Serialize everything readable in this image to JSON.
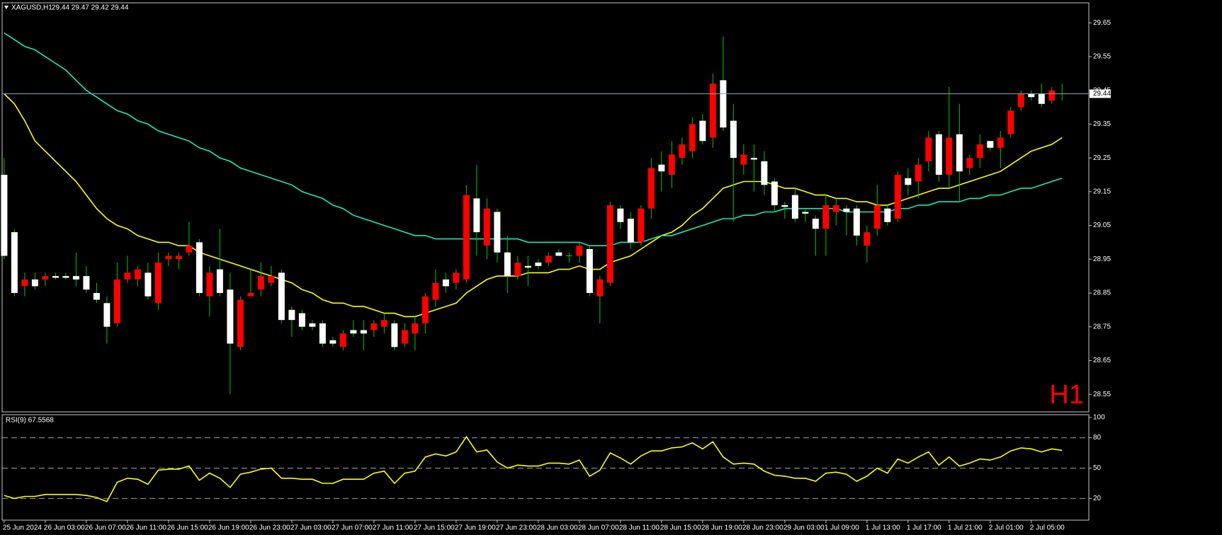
{
  "chart_data": [
    {
      "type": "candlestick",
      "title": "XAGUSD,H1",
      "subtitle": "29.44 29.47 29.42 29.44",
      "watermark": "H1",
      "categories": [
        "25 Jun 2024",
        null,
        null,
        null,
        "26 Jun 03:00",
        null,
        null,
        null,
        "26 Jun 07:00",
        null,
        null,
        null,
        "26 Jun 11:00",
        null,
        null,
        null,
        "26 Jun 15:00",
        null,
        null,
        null,
        "26 Jun 19:00",
        null,
        null,
        null,
        "26 Jun 23:00",
        null,
        null,
        null,
        "27 Jun 03:00",
        null,
        null,
        null,
        "27 Jun 07:00",
        null,
        null,
        null,
        "27 Jun 11:00",
        null,
        null,
        null,
        "27 Jun 15:00",
        null,
        null,
        null,
        "27 Jun 19:00",
        null,
        null,
        null,
        "27 Jun 23:00",
        null,
        null,
        null,
        "28 Jun 03:00",
        null,
        null,
        null,
        "28 Jun 07:00",
        null,
        null,
        null,
        "28 Jun 11:00",
        null,
        null,
        null,
        "28 Jun 15:00",
        null,
        null,
        null,
        "28 Jun 19:00",
        null,
        null,
        null,
        "28 Jun 23:00",
        null,
        null,
        null,
        "29 Jun 03:00",
        null,
        null,
        null,
        "1 Jul 09:00",
        null,
        null,
        null,
        "1 Jul 13:00",
        null,
        null,
        null,
        "1 Jul 17:00",
        null,
        null,
        null,
        "1 Jul 21:00",
        null,
        null,
        null,
        "2 Jul 01:00",
        null,
        null,
        null,
        "2 Jul 05:00",
        null,
        null,
        null
      ],
      "open": [
        29.2,
        29.03,
        28.87,
        28.89,
        28.89,
        28.9,
        28.9,
        28.9,
        28.9,
        28.85,
        28.82,
        28.76,
        28.89,
        28.89,
        28.91,
        28.82,
        28.95,
        28.95,
        28.97,
        29.0,
        28.84,
        28.92,
        28.86,
        28.69,
        28.84,
        28.86,
        28.88,
        28.91,
        28.8,
        28.79,
        28.76,
        28.76,
        28.71,
        28.69,
        28.74,
        28.74,
        28.74,
        28.75,
        28.76,
        28.7,
        28.73,
        28.76,
        28.83,
        28.89,
        28.88,
        28.89,
        29.13,
        28.99,
        29.09,
        28.97,
        28.9,
        28.93,
        28.94,
        28.94,
        28.97,
        28.96,
        28.96,
        28.98,
        28.84,
        28.88,
        29.1,
        29.07,
        29.0,
        29.1,
        29.23,
        29.2,
        29.25,
        29.27,
        29.36,
        29.31,
        29.48,
        29.36,
        29.23,
        29.25,
        29.24,
        29.18,
        29.11,
        29.14,
        29.09,
        29.07,
        29.04,
        29.09,
        29.1,
        29.1,
        28.99,
        29.04,
        29.1,
        29.07,
        29.19,
        29.18,
        29.24,
        29.32,
        29.2,
        29.32,
        29.22,
        29.25,
        29.3,
        29.28,
        29.32,
        29.4,
        29.44,
        29.44,
        29.42,
        29.44
      ],
      "high": [
        29.25,
        29.04,
        28.91,
        28.91,
        28.91,
        28.91,
        28.91,
        28.97,
        28.93,
        28.88,
        28.84,
        28.94,
        28.96,
        28.93,
        28.94,
        28.97,
        28.97,
        28.97,
        29.06,
        29.01,
        28.93,
        29.04,
        28.91,
        28.84,
        28.92,
        28.94,
        28.93,
        28.92,
        28.81,
        28.8,
        28.77,
        28.77,
        28.72,
        28.74,
        28.77,
        28.77,
        28.77,
        28.79,
        28.77,
        28.76,
        28.78,
        28.85,
        28.92,
        28.91,
        28.92,
        29.17,
        29.23,
        29.13,
        29.1,
        29.02,
        28.96,
        28.96,
        28.95,
        28.97,
        28.98,
        28.97,
        29.0,
        28.99,
        28.9,
        29.12,
        29.11,
        29.09,
        29.11,
        29.25,
        29.27,
        29.3,
        29.31,
        29.37,
        29.38,
        29.5,
        29.61,
        29.41,
        29.29,
        29.29,
        29.27,
        29.19,
        29.12,
        29.16,
        29.1,
        29.08,
        29.14,
        29.13,
        29.11,
        29.11,
        29.05,
        29.17,
        29.11,
        29.21,
        29.22,
        29.25,
        29.33,
        29.33,
        29.46,
        29.41,
        29.26,
        29.32,
        29.3,
        29.33,
        29.4,
        29.45,
        29.45,
        29.47,
        29.46,
        29.47
      ],
      "low": [
        28.95,
        28.84,
        28.84,
        28.86,
        28.87,
        28.89,
        28.89,
        28.87,
        28.85,
        28.82,
        28.7,
        28.75,
        28.88,
        28.87,
        28.83,
        28.8,
        28.93,
        28.92,
        28.96,
        28.84,
        28.78,
        28.84,
        28.55,
        28.68,
        28.84,
        28.84,
        28.87,
        28.76,
        28.72,
        28.74,
        28.74,
        28.69,
        28.69,
        28.68,
        28.72,
        28.68,
        28.72,
        28.73,
        28.68,
        28.69,
        28.68,
        28.73,
        28.81,
        28.85,
        28.86,
        28.88,
        28.96,
        28.95,
        28.94,
        28.85,
        28.89,
        28.87,
        28.92,
        28.93,
        28.96,
        28.94,
        28.94,
        28.84,
        28.76,
        28.87,
        29.04,
        28.98,
        28.99,
        29.07,
        29.15,
        29.16,
        29.23,
        29.25,
        29.29,
        29.28,
        29.33,
        29.06,
        29.2,
        29.15,
        29.14,
        29.09,
        29.07,
        29.06,
        29.06,
        28.96,
        28.96,
        29.05,
        29.02,
        28.99,
        28.94,
        29.02,
        29.05,
        29.06,
        29.14,
        29.13,
        29.21,
        29.18,
        29.16,
        29.12,
        29.2,
        29.22,
        29.27,
        29.22,
        29.31,
        29.39,
        29.42,
        29.4,
        29.41,
        29.42
      ],
      "close": [
        28.96,
        28.85,
        28.89,
        28.87,
        28.9,
        28.895,
        28.895,
        28.89,
        28.86,
        28.83,
        28.75,
        28.89,
        28.91,
        28.92,
        28.84,
        28.94,
        28.96,
        28.96,
        28.99,
        28.85,
        28.91,
        28.85,
        28.7,
        28.83,
        28.85,
        28.9,
        28.9,
        28.77,
        28.77,
        28.75,
        28.75,
        28.7,
        28.7,
        28.73,
        28.73,
        28.73,
        28.76,
        28.77,
        28.69,
        28.74,
        28.76,
        28.84,
        28.88,
        28.87,
        28.91,
        29.14,
        29.03,
        29.1,
        28.97,
        28.9,
        28.94,
        28.925,
        28.93,
        28.96,
        28.96,
        28.96,
        28.99,
        28.85,
        28.89,
        29.11,
        29.06,
        29.0,
        29.1,
        29.22,
        29.21,
        29.26,
        29.29,
        29.35,
        29.3,
        29.47,
        29.34,
        29.25,
        29.26,
        29.245,
        29.17,
        29.11,
        29.105,
        29.07,
        29.085,
        29.04,
        29.11,
        29.11,
        29.09,
        29.02,
        29.03,
        29.11,
        29.06,
        29.2,
        29.17,
        29.23,
        29.31,
        29.2,
        29.31,
        29.21,
        29.25,
        29.29,
        29.28,
        29.31,
        29.39,
        29.44,
        29.43,
        29.41,
        29.45,
        29.44
      ],
      "colors": {
        "up": "#ff0000",
        "down": "#ffffff",
        "wick": "#00c800"
      },
      "lines": [
        {
          "color": "#ffff00",
          "values": [
            29.44,
            29.41,
            29.36,
            29.3,
            29.27,
            29.24,
            29.21,
            29.18,
            29.14,
            29.1,
            29.07,
            29.05,
            29.04,
            29.02,
            29.01,
            29.0,
            29.0,
            28.99,
            28.99,
            28.97,
            28.96,
            28.95,
            28.94,
            28.93,
            28.92,
            28.91,
            28.9,
            28.89,
            28.88,
            28.86,
            28.85,
            28.83,
            28.82,
            28.82,
            28.81,
            28.81,
            28.8,
            28.79,
            28.79,
            28.78,
            28.78,
            28.79,
            28.8,
            28.81,
            28.82,
            28.85,
            28.87,
            28.89,
            28.9,
            28.9,
            28.9,
            28.91,
            28.91,
            28.91,
            28.92,
            28.92,
            28.93,
            28.92,
            28.92,
            28.94,
            28.95,
            28.96,
            28.98,
            29.0,
            29.02,
            29.03,
            29.05,
            29.08,
            29.1,
            29.13,
            29.16,
            29.17,
            29.18,
            29.18,
            29.18,
            29.17,
            29.16,
            29.16,
            29.15,
            29.14,
            29.14,
            29.13,
            29.13,
            29.12,
            29.12,
            29.11,
            29.11,
            29.12,
            29.13,
            29.14,
            29.15,
            29.16,
            29.16,
            29.17,
            29.18,
            29.19,
            29.2,
            29.21,
            29.23,
            29.25,
            29.27,
            29.28,
            29.29,
            29.31
          ]
        },
        {
          "color": "#1de9b6",
          "values": [
            29.62,
            29.6,
            29.58,
            29.57,
            29.55,
            29.53,
            29.51,
            29.48,
            29.45,
            29.43,
            29.41,
            29.39,
            29.38,
            29.36,
            29.35,
            29.33,
            29.32,
            29.31,
            29.3,
            29.28,
            29.27,
            29.25,
            29.24,
            29.22,
            29.21,
            29.2,
            29.19,
            29.18,
            29.17,
            29.15,
            29.14,
            29.13,
            29.11,
            29.1,
            29.08,
            29.07,
            29.06,
            29.05,
            29.04,
            29.03,
            29.02,
            29.02,
            29.01,
            29.01,
            29.01,
            29.01,
            29.01,
            29.01,
            29.01,
            29.01,
            29.01,
            29.0,
            29.0,
            29.0,
            29.0,
            29.0,
            29.0,
            28.99,
            28.99,
            28.99,
            29.0,
            29.0,
            29.0,
            29.01,
            29.02,
            29.02,
            29.03,
            29.04,
            29.05,
            29.06,
            29.07,
            29.07,
            29.08,
            29.08,
            29.09,
            29.09,
            29.1,
            29.1,
            29.1,
            29.1,
            29.1,
            29.1,
            29.09,
            29.09,
            29.09,
            29.09,
            29.09,
            29.1,
            29.1,
            29.11,
            29.11,
            29.12,
            29.12,
            29.12,
            29.13,
            29.13,
            29.14,
            29.14,
            29.15,
            29.16,
            29.16,
            29.17,
            29.18,
            29.19
          ]
        }
      ],
      "current_price": 29.44,
      "ylim": [
        28.5,
        29.705
      ],
      "yticks": [
        29.65,
        29.55,
        29.45,
        29.35,
        29.25,
        29.15,
        29.05,
        28.95,
        28.85,
        28.75,
        28.65,
        28.55
      ]
    },
    {
      "type": "line",
      "title": "RSI(9) 67.5568",
      "color": "#ffff00",
      "values": [
        23,
        20,
        22,
        22,
        24,
        24,
        24,
        24,
        23,
        21,
        17,
        36,
        40,
        39,
        34,
        48,
        49,
        49,
        52,
        38,
        45,
        40,
        31,
        44,
        46,
        49,
        50,
        40,
        40,
        39,
        39,
        35,
        35,
        39,
        39,
        39,
        45,
        47,
        35,
        45,
        47,
        61,
        64,
        62,
        66,
        81,
        66,
        68,
        56,
        50,
        53,
        52,
        52,
        55,
        55,
        54,
        58,
        42,
        48,
        65,
        60,
        54,
        62,
        67,
        67,
        70,
        71,
        75,
        69,
        76,
        61,
        54,
        55,
        54,
        47,
        43,
        42,
        40,
        40,
        37,
        45,
        46,
        44,
        37,
        42,
        50,
        45,
        59,
        55,
        61,
        66,
        53,
        61,
        52,
        55,
        59,
        58,
        61,
        67,
        70,
        69,
        66,
        69,
        67.5568
      ],
      "levels": [
        80,
        50,
        20
      ],
      "ylim": [
        0,
        100
      ],
      "yticks": [
        100,
        80,
        50,
        20
      ]
    }
  ]
}
